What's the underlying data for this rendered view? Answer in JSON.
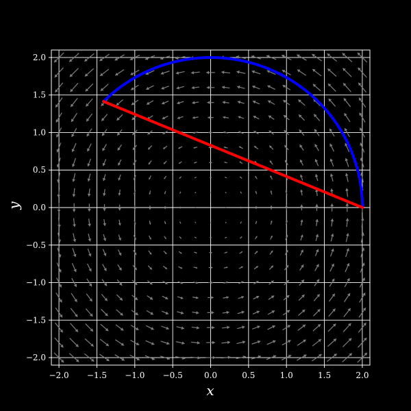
{
  "chart_data": {
    "type": "quiver",
    "title": "",
    "xlabel": "x",
    "ylabel": "y",
    "xlim": [
      -2.1,
      2.1
    ],
    "ylim": [
      -2.1,
      2.1
    ],
    "grid": true,
    "xticks": [
      -2.0,
      -1.5,
      -1.0,
      -0.5,
      0.0,
      0.5,
      1.0,
      1.5,
      2.0
    ],
    "yticks": [
      -2.0,
      -1.5,
      -1.0,
      -0.5,
      0.0,
      0.5,
      1.0,
      1.5,
      2.0
    ],
    "xtick_labels": [
      "−2.0",
      "−1.5",
      "−1.0",
      "−0.5",
      "0.0",
      "0.5",
      "1.0",
      "1.5",
      "2.0"
    ],
    "ytick_labels": [
      "−2.0",
      "−1.5",
      "−1.0",
      "−0.5",
      "0.0",
      "0.5",
      "1.0",
      "1.5",
      "2.0"
    ],
    "vector_field": {
      "description": "rotational field (-y, x)",
      "grid_min": -2.0,
      "grid_max": 2.0,
      "grid_count": 21
    },
    "series": [
      {
        "name": "arc",
        "kind": "circular-arc",
        "color": "#0000ff",
        "radius": 2.0,
        "center": [
          0,
          0
        ],
        "theta_start_deg": 0,
        "theta_end_deg": 135
      },
      {
        "name": "chord",
        "kind": "segment",
        "color": "#ff0000",
        "x": [
          2.0,
          -1.414
        ],
        "y": [
          0.0,
          1.414
        ]
      }
    ],
    "colors": {
      "background": "#000000",
      "grid": "#ffffff",
      "arrows": "#808080",
      "text": "#ffffff"
    }
  }
}
